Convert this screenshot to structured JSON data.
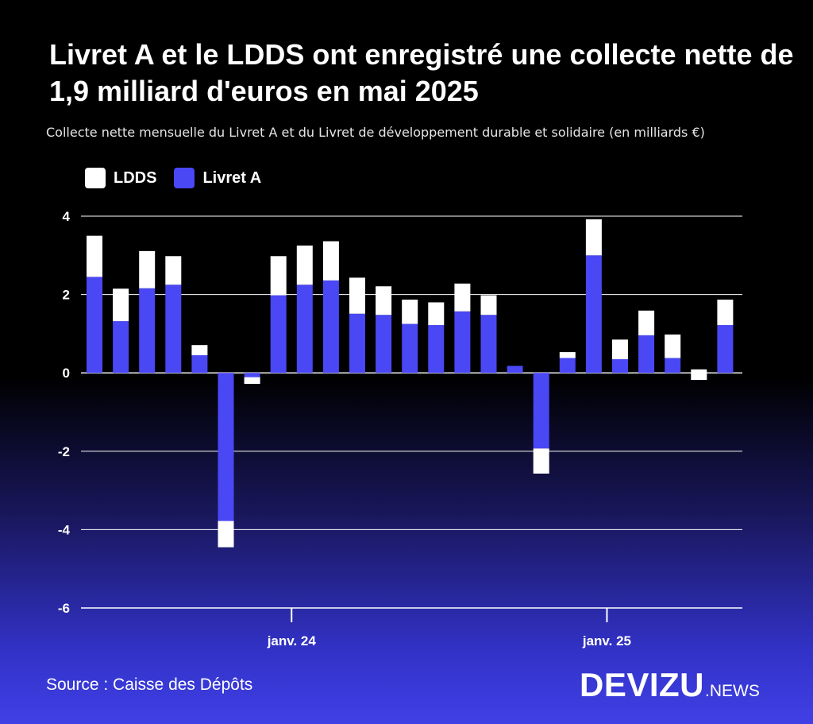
{
  "title": "Livret A et le LDDS ont enregistré une collecte nette de 1,9 milliard d'euros en mai 2025",
  "subtitle": "Collecte nette mensuelle du Livret A et du Livret de développement durable et solidaire (en milliards €)",
  "legend": [
    {
      "label": "LDDS",
      "color": "#ffffff"
    },
    {
      "label": "Livret A",
      "color": "#4a47f5"
    }
  ],
  "source": "Source : Caisse des Dépôts",
  "brand": {
    "main": "DEVIZU",
    "suffix": ".NEWS"
  },
  "chart_data": {
    "type": "bar",
    "stacked": true,
    "ylim": [
      -6,
      4
    ],
    "yticks": [
      4,
      2,
      0,
      -2,
      -4,
      -6
    ],
    "ytick_labels": [
      "4",
      "2",
      "0",
      "-2",
      "-4",
      "-6"
    ],
    "x_tick_labels": [
      {
        "label": "janv. 24",
        "index": 7.5
      },
      {
        "label": "janv. 25",
        "index": 19.5
      }
    ],
    "grid": true,
    "legend_position": "top-left",
    "series": [
      {
        "name": "Livret A",
        "color": "#4a47f5",
        "values": [
          2.45,
          1.32,
          2.16,
          2.25,
          0.45,
          -3.78,
          -0.28,
          1.98,
          2.25,
          2.36,
          1.51,
          1.48,
          1.25,
          1.22,
          1.57,
          1.48,
          0.18,
          -1.93,
          0.38,
          3.0,
          0.35,
          0.96,
          0.38,
          -0.18,
          1.22
        ]
      },
      {
        "name": "LDDS",
        "color": "#ffffff",
        "values": [
          1.05,
          0.83,
          0.95,
          0.73,
          0.26,
          -0.67,
          0.17,
          1.0,
          1.0,
          1.0,
          0.92,
          0.73,
          0.62,
          0.58,
          0.71,
          0.5,
          0.0,
          -0.64,
          0.15,
          0.92,
          0.5,
          0.63,
          0.6,
          0.27,
          0.65
        ]
      }
    ]
  }
}
